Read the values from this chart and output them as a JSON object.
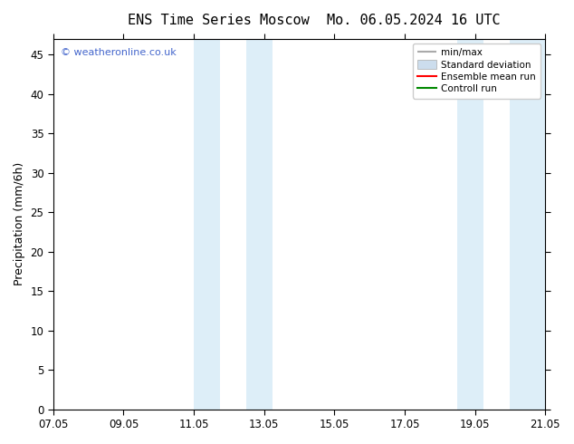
{
  "title_left": "ENS Time Series Moscow",
  "title_right": "Mo. 06.05.2024 16 UTC",
  "ylabel": "Precipitation (mm/6h)",
  "ylim": [
    0,
    47
  ],
  "yticks": [
    0,
    5,
    10,
    15,
    20,
    25,
    30,
    35,
    40,
    45
  ],
  "xtick_labels": [
    "07.05",
    "09.05",
    "11.05",
    "13.05",
    "15.05",
    "17.05",
    "19.05",
    "21.05"
  ],
  "xtick_positions": [
    0,
    2,
    4,
    6,
    8,
    10,
    12,
    14
  ],
  "xlim": [
    0,
    14
  ],
  "background_color": "#ffffff",
  "plot_bg_color": "#ffffff",
  "watermark_text": "© weatheronline.co.uk",
  "watermark_color": "#4466cc",
  "shade_regions": [
    {
      "x_start": 4.0,
      "x_end": 4.75,
      "color": "#ddeef8"
    },
    {
      "x_start": 5.5,
      "x_end": 6.25,
      "color": "#ddeef8"
    },
    {
      "x_start": 11.5,
      "x_end": 12.25,
      "color": "#ddeef8"
    },
    {
      "x_start": 13.0,
      "x_end": 14.0,
      "color": "#ddeef8"
    }
  ],
  "legend_items": [
    {
      "label": "min/max",
      "color": "#aaaaaa",
      "lw": 1.5
    },
    {
      "label": "Standard deviation",
      "color": "#ccdded",
      "lw": 8
    },
    {
      "label": "Ensemble mean run",
      "color": "#ff0000",
      "lw": 1.5
    },
    {
      "label": "Controll run",
      "color": "#008800",
      "lw": 1.5
    }
  ],
  "font_size_title": 11,
  "font_size_ylabel": 9,
  "font_size_ticks": 8.5,
  "font_size_legend": 7.5,
  "font_size_watermark": 8
}
